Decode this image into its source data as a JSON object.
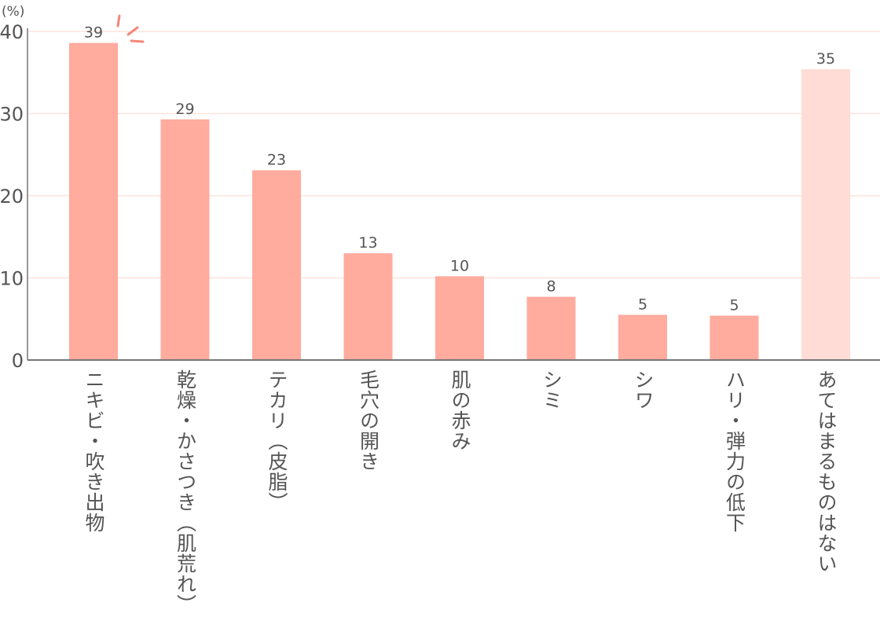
{
  "chart_data": {
    "type": "bar",
    "unit_label": "(%)",
    "categories": [
      "ニキビ・吹き出物",
      "乾燥・かさつき（肌荒れ）",
      "テカリ（皮脂）",
      "毛穴の開き",
      "肌の赤み",
      "シミ",
      "シワ",
      "ハリ・弾力の低下",
      "あてはまるものはない"
    ],
    "values": [
      38.6,
      29.3,
      23.1,
      13.0,
      10.2,
      7.7,
      5.5,
      5.4,
      35.4
    ],
    "data_labels": [
      "39",
      "29",
      "23",
      "13",
      "10",
      "8",
      "5",
      "5",
      "35"
    ],
    "ylim": [
      0,
      40
    ],
    "yticks": [
      "0",
      "10",
      "20",
      "30",
      "40"
    ],
    "grid": true,
    "colors": {
      "bar": "#ffab9e",
      "bar_last": "#ffdcd6",
      "grid": "#fde3dd",
      "axis": "#777777",
      "accent": "#f4877a"
    }
  }
}
